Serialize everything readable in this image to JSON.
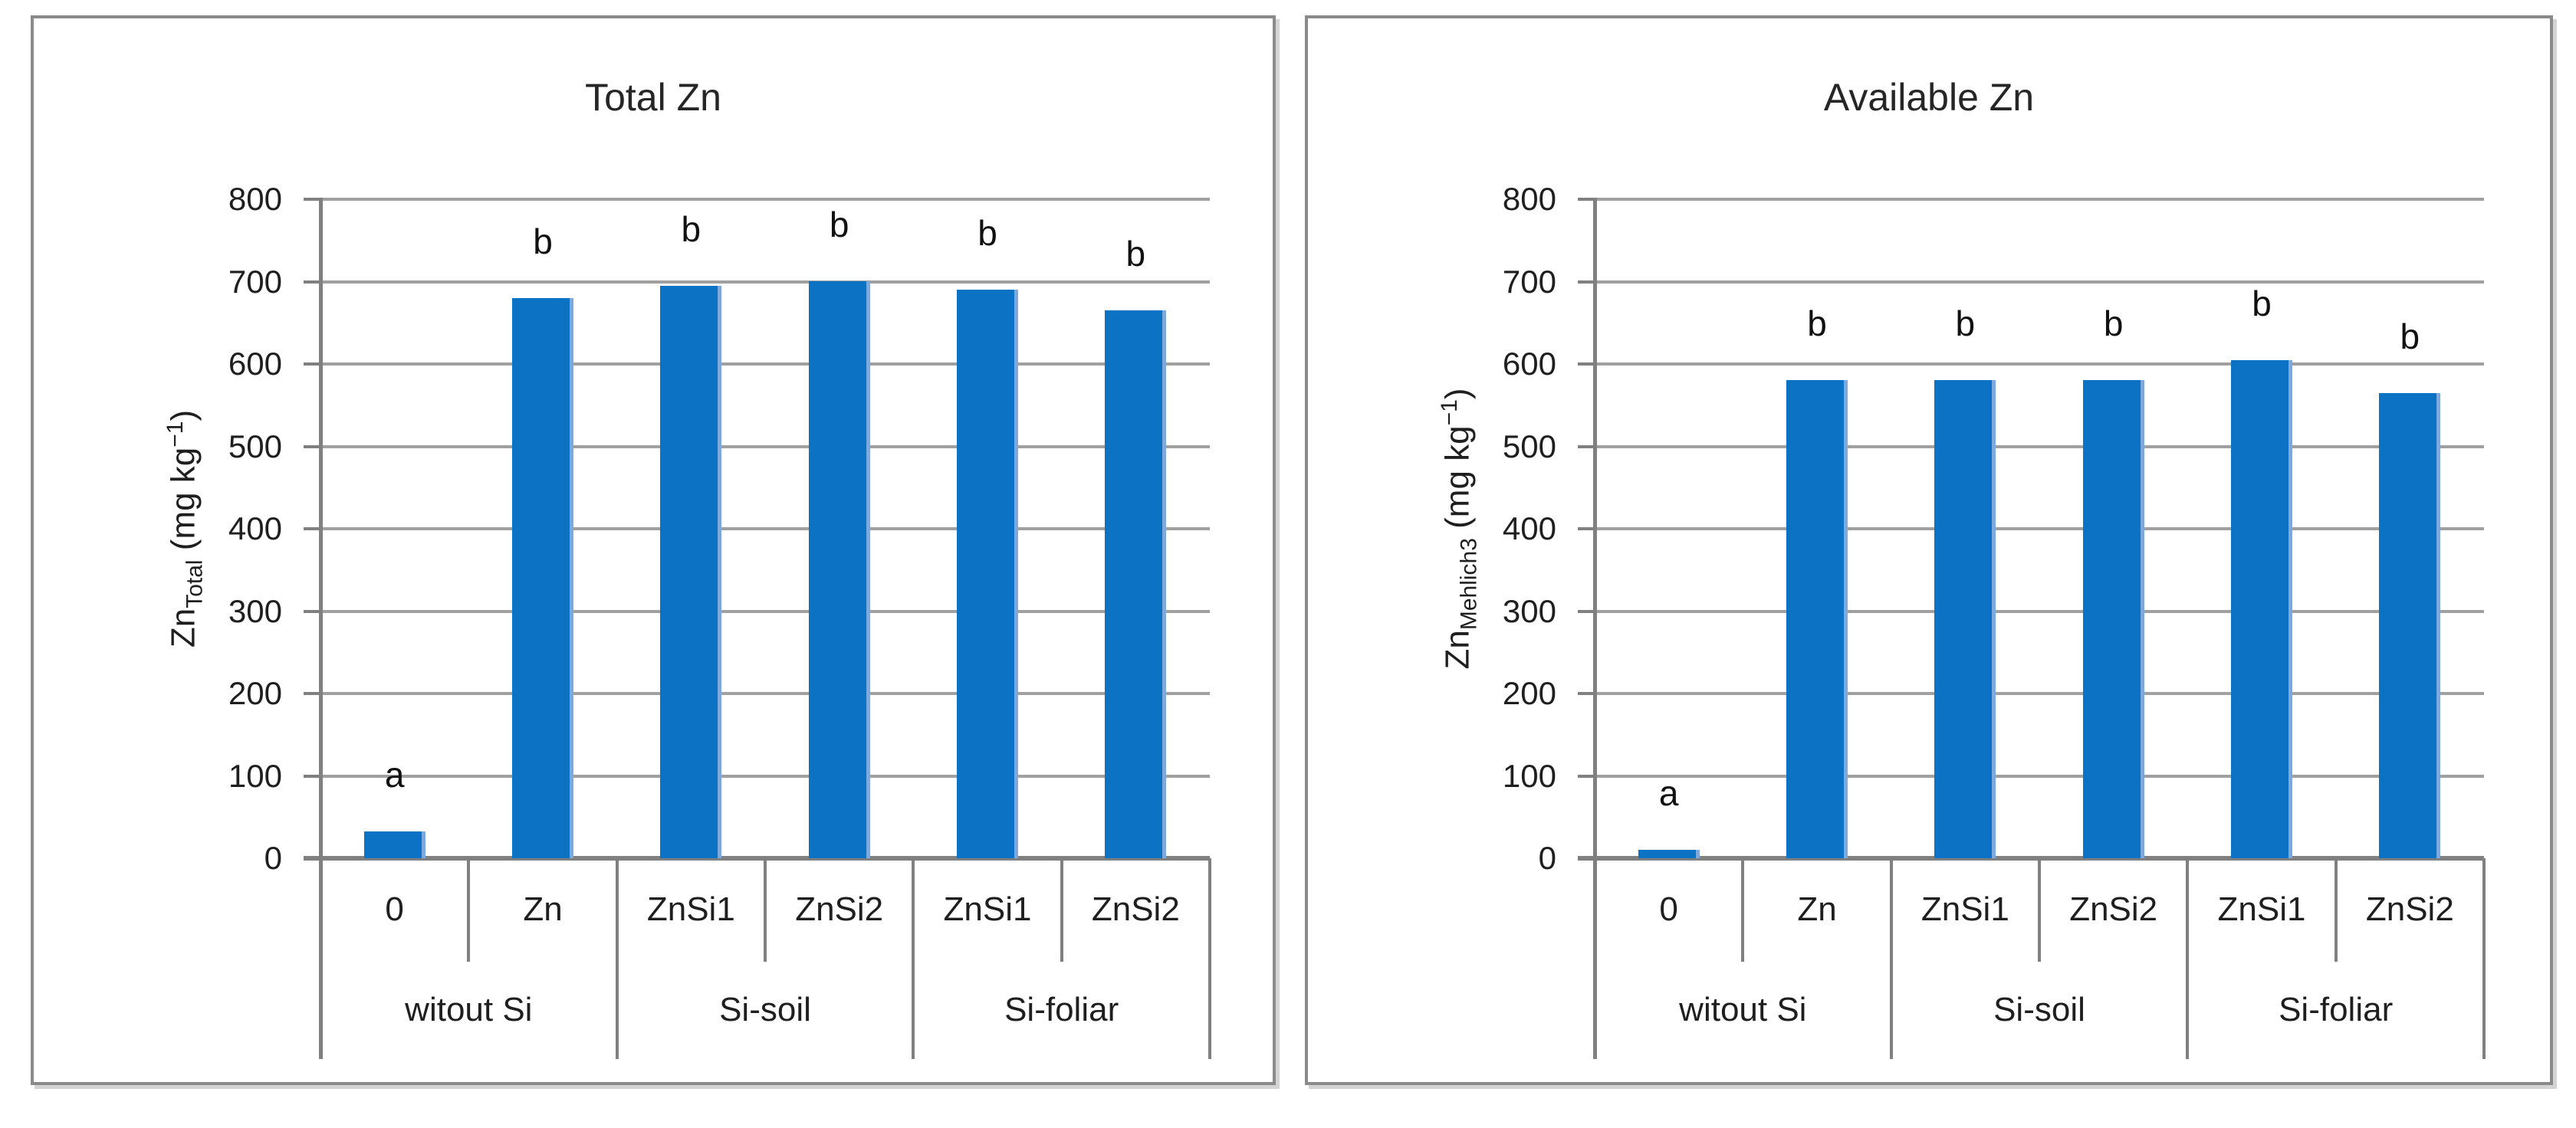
{
  "style": {
    "grid_color": "#a0a0a0",
    "axis_color": "#808080",
    "text_color": "#1f1f1f",
    "panel_border": "#8a8a8a",
    "background": "#ffffff"
  },
  "chart_data": [
    {
      "type": "bar",
      "title": "Total Zn",
      "ylabel": {
        "base": "Zn",
        "sub": "Total",
        "unit": "mg kg",
        "exp": "−1"
      },
      "categories": [
        "0",
        "Zn",
        "ZnSi1",
        "ZnSi2",
        "ZnSi1",
        "ZnSi2"
      ],
      "group_labels": [
        {
          "label": "witout Si",
          "span": 2
        },
        {
          "label": "Si-soil",
          "span": 2
        },
        {
          "label": "Si-foliar",
          "span": 2
        }
      ],
      "values": [
        33,
        680,
        695,
        700,
        690,
        665
      ],
      "sig_letters": [
        "a",
        "b",
        "b",
        "b",
        "b",
        "b"
      ],
      "ylim": [
        0,
        800
      ],
      "ytick_step": 100,
      "grid": true,
      "legend": null,
      "bar_color": "#0b72c4",
      "bar_edge": "#7fa9dc"
    },
    {
      "type": "bar",
      "title": "Available Zn",
      "ylabel": {
        "base": "Zn",
        "sub": "Mehlich3",
        "unit": "mg kg",
        "exp": "−1"
      },
      "categories": [
        "0",
        "Zn",
        "ZnSi1",
        "ZnSi2",
        "ZnSi1",
        "ZnSi2"
      ],
      "group_labels": [
        {
          "label": "witout Si",
          "span": 2
        },
        {
          "label": "Si-soil",
          "span": 2
        },
        {
          "label": "Si-foliar",
          "span": 2
        }
      ],
      "values": [
        10,
        580,
        580,
        580,
        605,
        565
      ],
      "sig_letters": [
        "a",
        "b",
        "b",
        "b",
        "b",
        "b"
      ],
      "ylim": [
        0,
        800
      ],
      "ytick_step": 100,
      "grid": true,
      "legend": null,
      "bar_color": "#0b72c4",
      "bar_edge": "#7fa9dc"
    }
  ]
}
